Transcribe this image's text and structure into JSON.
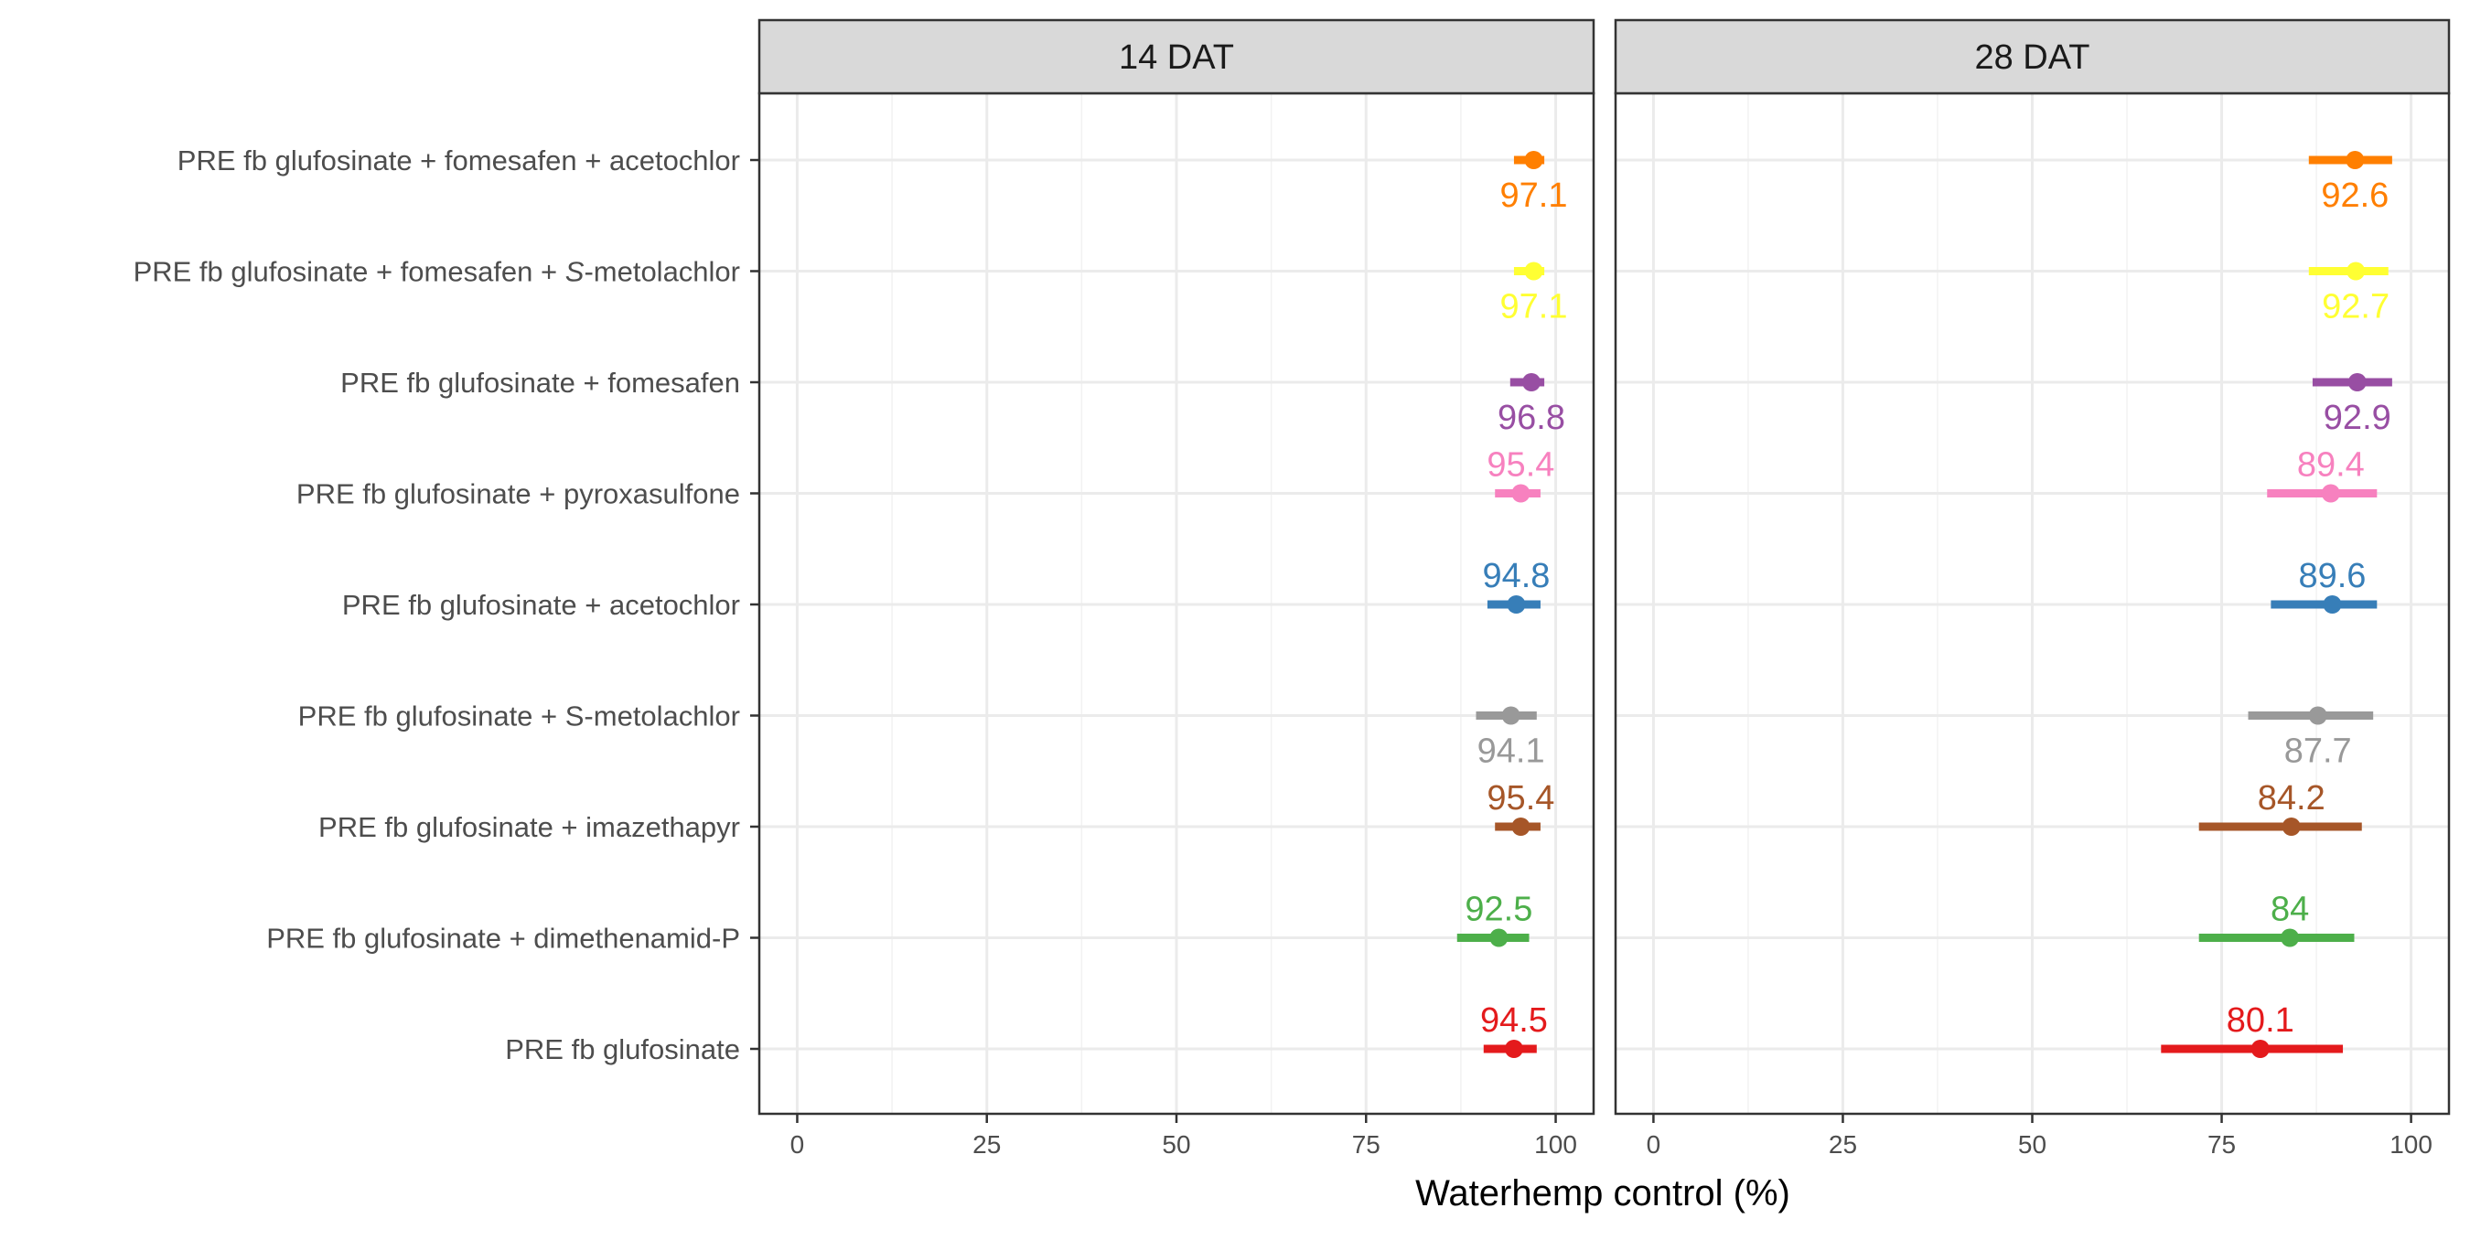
{
  "chart_data": {
    "type": "forest",
    "xlabel": "Waterhemp control (%)",
    "ylabel": "",
    "xlim": [
      -5,
      105
    ],
    "xticks": [
      0,
      25,
      50,
      75,
      100
    ],
    "grid": true,
    "legend": "none",
    "categories": [
      {
        "label": "PRE fb glufosinate + fomesafen + acetochlor",
        "color": "#FF7F00"
      },
      {
        "label": "PRE fb glufosinate + fomesafen + ",
        "label_italic": "S",
        "label_suffix": "-metolachlor",
        "color": "#FFFF33"
      },
      {
        "label": "PRE fb glufosinate + fomesafen",
        "color": "#984EA3"
      },
      {
        "label": "PRE fb glufosinate + pyroxasulfone",
        "color": "#F781BF"
      },
      {
        "label": "PRE fb glufosinate + acetochlor",
        "color": "#377EB8"
      },
      {
        "label": "PRE fb glufosinate + S-metolachlor",
        "color": "#999999"
      },
      {
        "label": "PRE fb glufosinate + imazethapyr",
        "color": "#A65628"
      },
      {
        "label": "PRE fb glufosinate + dimethenamid-P",
        "color": "#4DAF4A"
      },
      {
        "label": "PRE fb glufosinate",
        "color": "#E41A1C"
      }
    ],
    "panels": [
      {
        "title": "14 DAT",
        "series": [
          {
            "estimate": 97.1,
            "lower": 94.5,
            "upper": 98.5,
            "label": "97.1",
            "label_pos": "below"
          },
          {
            "estimate": 97.1,
            "lower": 94.5,
            "upper": 98.5,
            "label": "97.1",
            "label_pos": "below"
          },
          {
            "estimate": 96.8,
            "lower": 94.0,
            "upper": 98.5,
            "label": "96.8",
            "label_pos": "below"
          },
          {
            "estimate": 95.4,
            "lower": 92.0,
            "upper": 98.0,
            "label": "95.4",
            "label_pos": "above"
          },
          {
            "estimate": 94.8,
            "lower": 91.0,
            "upper": 98.0,
            "label": "94.8",
            "label_pos": "above"
          },
          {
            "estimate": 94.1,
            "lower": 89.5,
            "upper": 97.5,
            "label": "94.1",
            "label_pos": "below"
          },
          {
            "estimate": 95.4,
            "lower": 92.0,
            "upper": 98.0,
            "label": "95.4",
            "label_pos": "above"
          },
          {
            "estimate": 92.5,
            "lower": 87.0,
            "upper": 96.5,
            "label": "92.5",
            "label_pos": "above"
          },
          {
            "estimate": 94.5,
            "lower": 90.5,
            "upper": 97.5,
            "label": "94.5",
            "label_pos": "above"
          }
        ]
      },
      {
        "title": "28 DAT",
        "series": [
          {
            "estimate": 92.6,
            "lower": 86.5,
            "upper": 97.5,
            "label": "92.6",
            "label_pos": "below"
          },
          {
            "estimate": 92.7,
            "lower": 86.5,
            "upper": 97.0,
            "label": "92.7",
            "label_pos": "below"
          },
          {
            "estimate": 92.9,
            "lower": 87.0,
            "upper": 97.5,
            "label": "92.9",
            "label_pos": "below"
          },
          {
            "estimate": 89.4,
            "lower": 81.0,
            "upper": 95.5,
            "label": "89.4",
            "label_pos": "above"
          },
          {
            "estimate": 89.6,
            "lower": 81.5,
            "upper": 95.5,
            "label": "89.6",
            "label_pos": "above"
          },
          {
            "estimate": 87.7,
            "lower": 78.5,
            "upper": 95.0,
            "label": "87.7",
            "label_pos": "below"
          },
          {
            "estimate": 84.2,
            "lower": 72.0,
            "upper": 93.5,
            "label": "84.2",
            "label_pos": "above"
          },
          {
            "estimate": 84.0,
            "lower": 72.0,
            "upper": 92.5,
            "label": "84",
            "label_pos": "above"
          },
          {
            "estimate": 80.1,
            "lower": 67.0,
            "upper": 91.0,
            "label": "80.1",
            "label_pos": "above"
          }
        ]
      }
    ]
  }
}
